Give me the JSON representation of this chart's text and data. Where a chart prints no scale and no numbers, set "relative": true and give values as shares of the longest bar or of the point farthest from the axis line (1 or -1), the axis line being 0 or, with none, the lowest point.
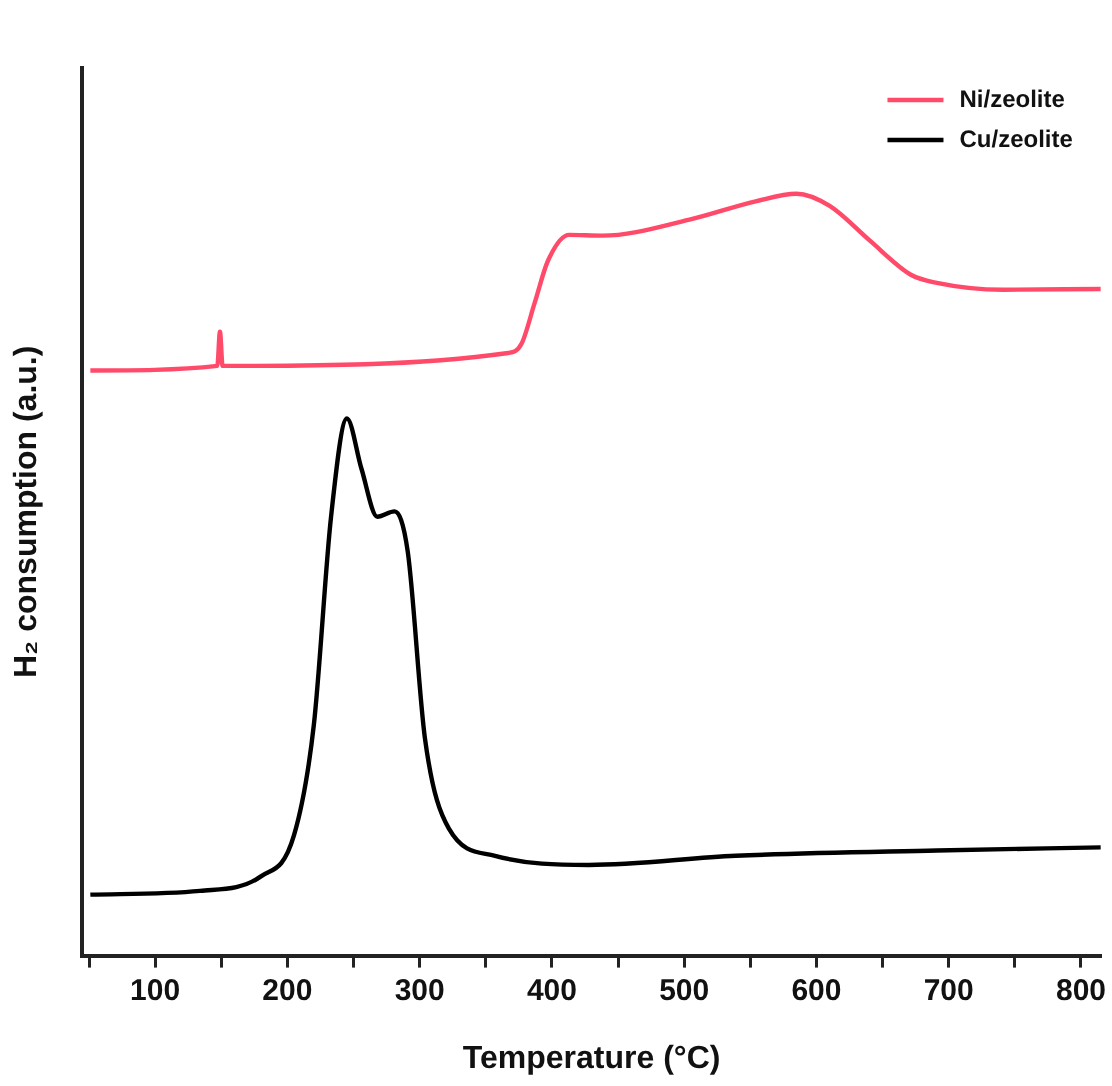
{
  "chart_data": {
    "type": "line",
    "xlabel": "Temperature (°C)",
    "ylabel": "H₂ consumption (a.u.)",
    "relative": true,
    "xlim": [
      45,
      815
    ],
    "xticks": [
      {
        "value": 50,
        "label": null
      },
      100,
      {
        "value": 150,
        "label": null
      },
      200,
      {
        "value": 250,
        "label": null
      },
      300,
      {
        "value": 350,
        "label": null
      },
      400,
      {
        "value": 450,
        "label": null
      },
      500,
      {
        "value": 550,
        "label": null
      },
      600,
      {
        "value": 650,
        "label": null
      },
      700,
      {
        "value": 750,
        "label": null
      },
      800
    ],
    "grid": false,
    "legend": "top right",
    "marker": "none",
    "line_style": "solid",
    "series": [
      {
        "name": "Ni/zeolite",
        "color": "#ff4a6a",
        "x": [
          51,
          147,
          149,
          151,
          367,
          377,
          387,
          397,
          413,
          438,
          504,
          554,
          585,
          610,
          640,
          671,
          691,
          741,
          815
        ],
        "values": [
          0.768,
          0.774,
          0.819,
          0.774,
          0.791,
          0.803,
          0.857,
          0.912,
          0.946,
          0.945,
          0.966,
          0.99,
          1.0,
          0.984,
          0.939,
          0.894,
          0.883,
          0.874,
          0.875
        ]
      },
      {
        "name": "Cu/zeolite",
        "color": "#000000",
        "x": [
          51,
          134,
          180,
          205,
          220,
          233,
          245,
          256,
          268,
          281,
          291,
          304,
          322,
          357,
          428,
          539,
          691,
          815
        ],
        "values": [
          0.08,
          0.085,
          0.104,
          0.158,
          0.303,
          0.576,
          0.705,
          0.639,
          0.576,
          0.583,
          0.53,
          0.285,
          0.167,
          0.131,
          0.119,
          0.131,
          0.138,
          0.142
        ]
      }
    ]
  }
}
